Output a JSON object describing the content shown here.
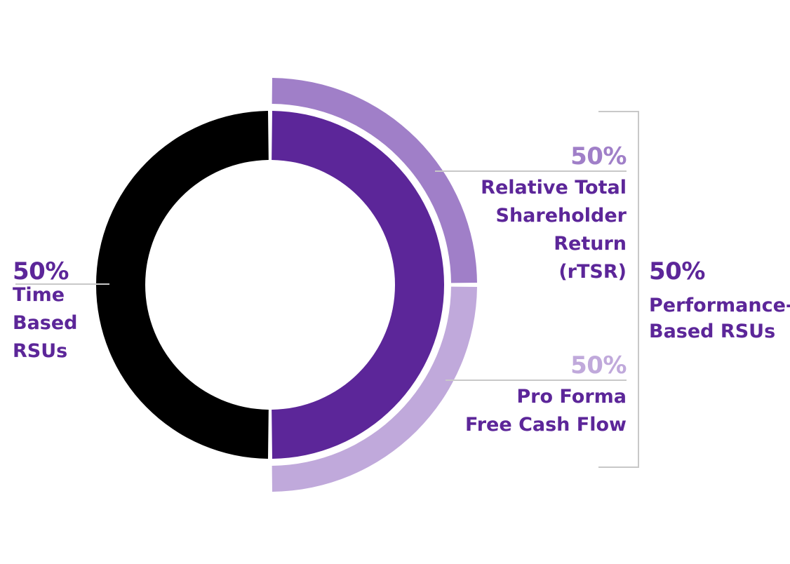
{
  "chart_data": {
    "type": "pie",
    "inner": [
      {
        "name": "Time Based RSUs",
        "value": 50,
        "color": "#000000"
      },
      {
        "name": "Performance-Based RSUs",
        "value": 50,
        "color": "#5c2699"
      }
    ],
    "outer": [
      {
        "name": "Relative Total Shareholder Return (rTSR)",
        "value": 50,
        "color": "#a07fc8"
      },
      {
        "name": "Pro Forma Free Cash Flow",
        "value": 50,
        "color": "#c0a9db"
      }
    ]
  },
  "labels": {
    "time": {
      "pct": "50%",
      "l1": "Time",
      "l2": "Based",
      "l3": "RSUs"
    },
    "perf": {
      "pct": "50%",
      "l1": "Performance-",
      "l2": "Based RSUs"
    },
    "rtsr": {
      "pct": "50%",
      "l1": "Relative Total",
      "l2": "Shareholder",
      "l3": "Return",
      "l4": "(rTSR)"
    },
    "fcf": {
      "pct": "50%",
      "l1": "Pro Forma",
      "l2": "Free Cash Flow"
    }
  },
  "colors": {
    "dark_purple": "#5c2699",
    "mid_purple": "#a07fc8",
    "light_purple": "#c0a9db",
    "black": "#000000",
    "line": "#c8c8c8"
  }
}
